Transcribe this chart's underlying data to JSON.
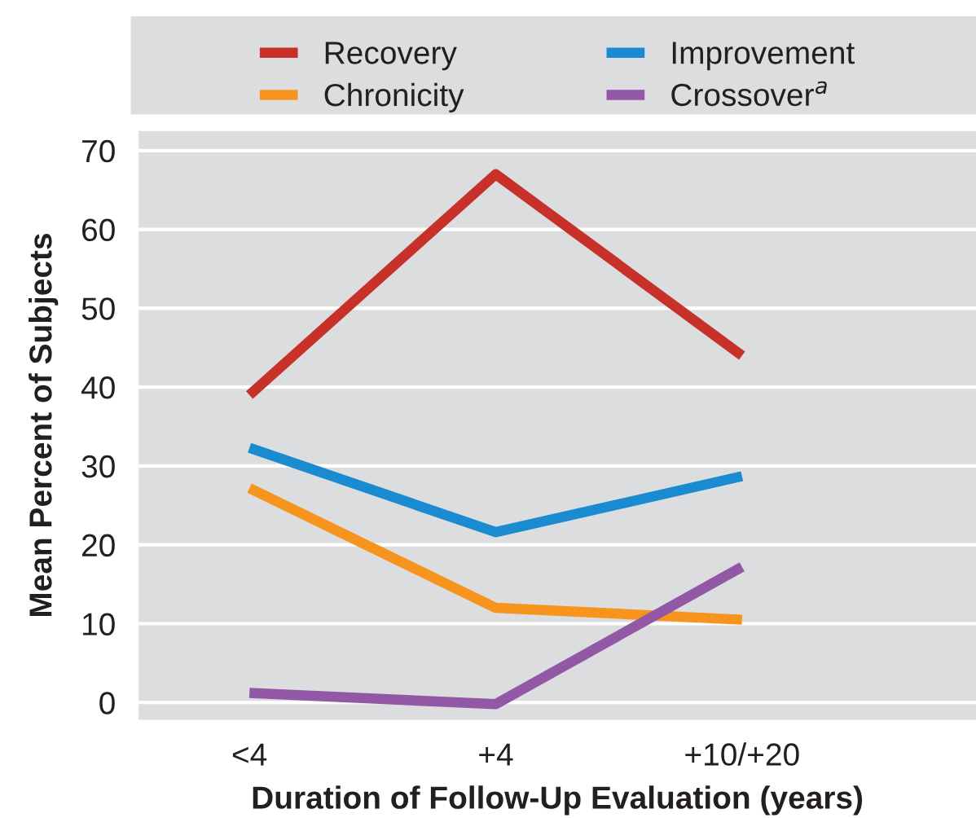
{
  "chart_data": {
    "type": "line",
    "xlabel": "Duration of Follow-Up Evaluation (years)",
    "ylabel": "Mean Percent of Subjects",
    "categories": [
      "<4",
      "+4",
      "+10/+20"
    ],
    "series": [
      {
        "name": "Recovery",
        "color": "#c8302a",
        "values": [
          39,
          67,
          44
        ]
      },
      {
        "name": "Chronicity",
        "color": "#f7941d",
        "values": [
          27.2,
          12,
          10.5
        ]
      },
      {
        "name": "Improvement",
        "color": "#1a8bd0",
        "values": [
          32.3,
          21.6,
          28.7
        ]
      },
      {
        "name": "Crossover$^{a}$",
        "color": "#9257a5",
        "values": [
          1.2,
          -0.2,
          17.2
        ]
      }
    ],
    "ylim": [
      -2.2,
      72.5
    ],
    "yticks": [
      0,
      10,
      20,
      30,
      40,
      50,
      60,
      70
    ],
    "grid": "y",
    "legend": "top",
    "marker": "none",
    "line_style": "solid"
  }
}
